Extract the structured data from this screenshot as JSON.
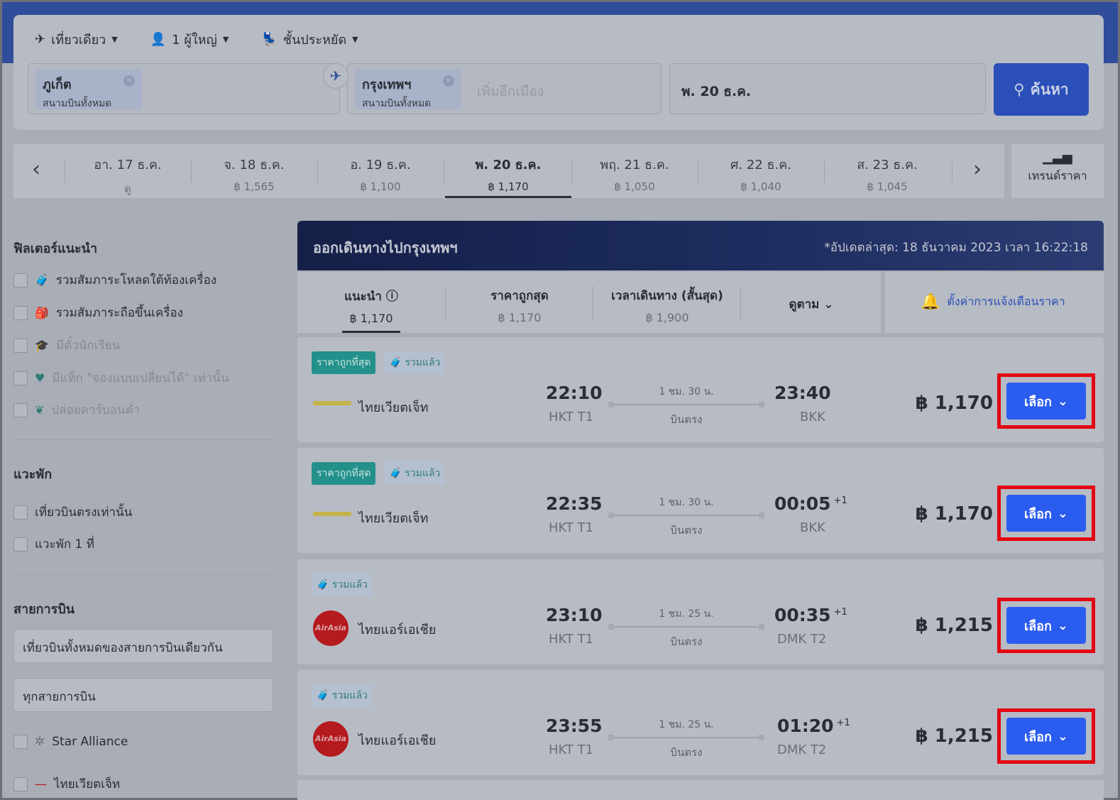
{
  "search": {
    "trip_type": "เที่ยวเดียว",
    "passengers": "1 ผู้ใหญ่",
    "cabin": "ชั้นประหยัด",
    "origin": {
      "city": "ภูเก็ต",
      "sub": "สนามบินทั้งหมด"
    },
    "destination": {
      "city": "กรุงเทพฯ",
      "sub": "สนามบินทั้งหมด"
    },
    "add_city_placeholder": "เพิ่มอีกเมือง",
    "date": "พ. 20 ธ.ค.",
    "search_label": "ค้นหา"
  },
  "date_strip": {
    "days": [
      {
        "date": "อา. 17 ธ.ค.",
        "price": "ดู",
        "active": false
      },
      {
        "date": "จ. 18 ธ.ค.",
        "price": "฿ 1,565",
        "active": false
      },
      {
        "date": "อ. 19 ธ.ค.",
        "price": "฿ 1,100",
        "active": false
      },
      {
        "date": "พ. 20 ธ.ค.",
        "price": "฿ 1,170",
        "active": true
      },
      {
        "date": "พฤ. 21 ธ.ค.",
        "price": "฿ 1,050",
        "active": false
      },
      {
        "date": "ศ. 22 ธ.ค.",
        "price": "฿ 1,040",
        "active": false
      },
      {
        "date": "ส. 23 ธ.ค.",
        "price": "฿ 1,045",
        "active": false
      }
    ],
    "trend_label": "เทรนด์ราคา"
  },
  "filters": {
    "recommended_title": "ฟิลเตอร์แนะนำ",
    "recommended": [
      {
        "label": "รวมสัมภาระโหลดใต้ท้องเครื่อง",
        "icon": "luggage-icon",
        "dim": false
      },
      {
        "label": "รวมสัมภาระถือขึ้นเครื่อง",
        "icon": "carry-on-icon",
        "dim": false
      },
      {
        "label": "มีตั๋วนักเรียน",
        "icon": "graduation-cap-icon",
        "dim": true
      },
      {
        "label": "มีแท็ก \"จองแบบเปลี่ยนได้\" เท่านั้น",
        "icon": "heart-icon",
        "dim": true
      },
      {
        "label": "ปล่อยคาร์บอนต่ำ",
        "icon": "leaf-icon",
        "dim": true
      }
    ],
    "stops_title": "แวะพัก",
    "stops": [
      "เที่ยวบินตรงเท่านั้น",
      "แวะพัก 1 ที่"
    ],
    "airlines_title": "สายการบิน",
    "airline_select_1": "เที่ยวบินทั้งหมดของสายการบินเดียวกัน",
    "airline_select_2": "ทุกสายการบิน",
    "airline_options": [
      "Star Alliance",
      "ไทยเวียตเจ็ท"
    ]
  },
  "results": {
    "title": "ออกเดินทางไปกรุงเทพฯ",
    "updated": "*อัปเดตล่าสุด: 18 ธันวาคม 2023 เวลา 16:22:18",
    "sort_tabs": [
      {
        "label": "แนะนำ ⓘ",
        "value": "฿ 1,170",
        "active": true
      },
      {
        "label": "ราคาถูกสุด",
        "value": "฿ 1,170",
        "active": false
      },
      {
        "label": "เวลาเดินทาง (สั้นสุด)",
        "value": "฿ 1,900",
        "active": false
      }
    ],
    "sort_more": "ดูตาม",
    "price_alert": "ตั้งค่าการแจ้งเตือนราคา",
    "flights": [
      {
        "badges": [
          "ราคาถูกที่สุด",
          "รวมแล้ว"
        ],
        "airline": "ไทยเวียตเจ็ท",
        "logo": "vietjet",
        "dep_time": "22:10",
        "dep_code": "HKT T1",
        "duration": "1 ชม. 30 น.",
        "stops": "บินตรง",
        "arr_time": "23:40",
        "arr_plus": "",
        "arr_code": "BKK",
        "price": "฿ 1,170",
        "select_label": "เลือก"
      },
      {
        "badges": [
          "ราคาถูกที่สุด",
          "รวมแล้ว"
        ],
        "airline": "ไทยเวียตเจ็ท",
        "logo": "vietjet",
        "dep_time": "22:35",
        "dep_code": "HKT T1",
        "duration": "1 ชม. 30 น.",
        "stops": "บินตรง",
        "arr_time": "00:05",
        "arr_plus": "+1",
        "arr_code": "BKK",
        "price": "฿ 1,170",
        "select_label": "เลือก"
      },
      {
        "badges": [
          "รวมแล้ว"
        ],
        "airline": "ไทยแอร์เอเชีย",
        "logo": "airasia",
        "dep_time": "23:10",
        "dep_code": "HKT T1",
        "duration": "1 ชม. 25 น.",
        "stops": "บินตรง",
        "arr_time": "00:35",
        "arr_plus": "+1",
        "arr_code": "DMK T2",
        "price": "฿ 1,215",
        "select_label": "เลือก"
      },
      {
        "badges": [
          "รวมแล้ว"
        ],
        "airline": "ไทยแอร์เอเชีย",
        "logo": "airasia",
        "dep_time": "23:55",
        "dep_code": "HKT T1",
        "duration": "1 ชม. 25 น.",
        "stops": "บินตรง",
        "arr_time": "01:20",
        "arr_plus": "+1",
        "arr_code": "DMK T2",
        "price": "฿ 1,215",
        "select_label": "เลือก"
      }
    ],
    "airasia_logo_text": "AirAsia"
  },
  "colors": {
    "highlight": "#e30613",
    "button": "#2b5cf0",
    "accent": "#2f4d9b"
  }
}
